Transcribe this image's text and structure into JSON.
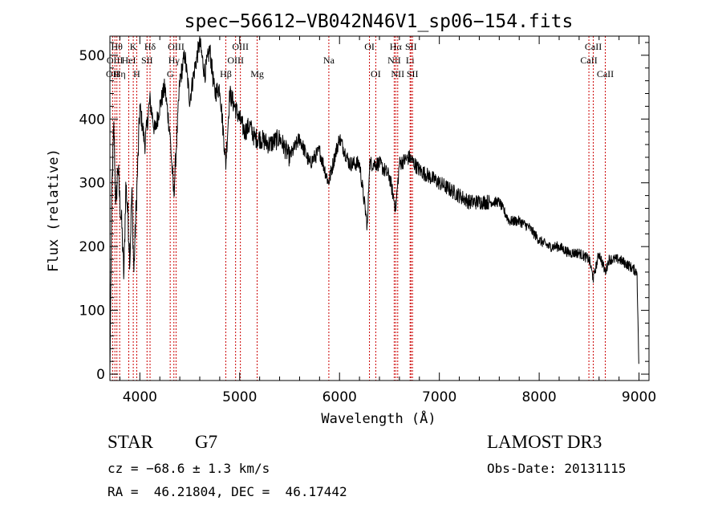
{
  "chart_data": {
    "type": "line",
    "title": "spec−56612−VB042N46V1_sp06−154.fits",
    "xlabel": "Wavelength (Å)",
    "ylabel": "Flux (relative)",
    "xlim": [
      3700,
      9100
    ],
    "ylim": [
      -10,
      530
    ],
    "xticks": [
      4000,
      5000,
      6000,
      7000,
      8000,
      9000
    ],
    "yticks": [
      0,
      100,
      200,
      300,
      400,
      500
    ],
    "series": [
      {
        "name": "flux",
        "x": [
          3700,
          3720,
          3740,
          3760,
          3780,
          3800,
          3820,
          3840,
          3860,
          3880,
          3900,
          3920,
          3940,
          3960,
          3980,
          4000,
          4050,
          4100,
          4150,
          4200,
          4250,
          4300,
          4340,
          4400,
          4450,
          4500,
          4550,
          4600,
          4650,
          4700,
          4750,
          4800,
          4861,
          4900,
          4950,
          5000,
          5050,
          5100,
          5150,
          5200,
          5300,
          5400,
          5500,
          5600,
          5700,
          5800,
          5890,
          5950,
          6000,
          6100,
          6200,
          6280,
          6300,
          6400,
          6500,
          6563,
          6600,
          6700,
          6800,
          6900,
          7000,
          7100,
          7200,
          7300,
          7400,
          7500,
          7600,
          7700,
          7800,
          7900,
          8000,
          8100,
          8200,
          8300,
          8400,
          8500,
          8542,
          8600,
          8662,
          8700,
          8800,
          8900,
          8980,
          9000
        ],
        "values": [
          0,
          290,
          390,
          260,
          330,
          270,
          230,
          150,
          300,
          250,
          180,
          290,
          160,
          250,
          330,
          420,
          360,
          430,
          380,
          420,
          450,
          380,
          280,
          460,
          500,
          430,
          480,
          520,
          470,
          510,
          440,
          450,
          330,
          440,
          420,
          400,
          380,
          390,
          370,
          370,
          360,
          370,
          340,
          370,
          330,
          350,
          300,
          340,
          370,
          330,
          330,
          230,
          330,
          330,
          310,
          260,
          330,
          340,
          320,
          310,
          300,
          290,
          280,
          270,
          270,
          270,
          270,
          240,
          240,
          230,
          210,
          200,
          200,
          190,
          190,
          180,
          150,
          190,
          160,
          180,
          180,
          170,
          160,
          0
        ]
      }
    ],
    "lines": [
      {
        "w": 3727,
        "label": "OII",
        "row": 2
      },
      {
        "w": 3750,
        "label": "OIII",
        "row": 1
      },
      {
        "w": 3770,
        "label": "Hθ",
        "row": 0
      },
      {
        "w": 3798,
        "label": "Hη",
        "row": 2
      },
      {
        "w": 3889,
        "label": "HeI",
        "row": 1
      },
      {
        "w": 3934,
        "label": "K",
        "row": 0
      },
      {
        "w": 3969,
        "label": "H",
        "row": 2
      },
      {
        "w": 4072,
        "label": "SII",
        "row": 1
      },
      {
        "w": 4102,
        "label": "Hδ",
        "row": 0
      },
      {
        "w": 4304,
        "label": "G",
        "row": 2
      },
      {
        "w": 4341,
        "label": "Hγ",
        "row": 1
      },
      {
        "w": 4363,
        "label": "OIII",
        "row": 0
      },
      {
        "w": 4861,
        "label": "Hβ",
        "row": 2
      },
      {
        "w": 4959,
        "label": "OIII",
        "row": 1
      },
      {
        "w": 5007,
        "label": "OIII",
        "row": 0
      },
      {
        "w": 5175,
        "label": "Mg",
        "row": 2
      },
      {
        "w": 5893,
        "label": "Na",
        "row": 1
      },
      {
        "w": 6300,
        "label": "OI",
        "row": 0
      },
      {
        "w": 6363,
        "label": "OI",
        "row": 2
      },
      {
        "w": 6548,
        "label": "NII",
        "row": 1
      },
      {
        "w": 6563,
        "label": "Hα",
        "row": 0
      },
      {
        "w": 6583,
        "label": "NII",
        "row": 2
      },
      {
        "w": 6707,
        "label": "Li",
        "row": 1
      },
      {
        "w": 6716,
        "label": "SII",
        "row": 0
      },
      {
        "w": 6731,
        "label": "SII",
        "row": 2
      },
      {
        "w": 8498,
        "label": "CaII",
        "row": 1
      },
      {
        "w": 8542,
        "label": "CaII",
        "row": 0
      },
      {
        "w": 8662,
        "label": "CaII",
        "row": 2
      }
    ]
  },
  "footer": {
    "object_class": "STAR",
    "subclass": "G7",
    "survey": "LAMOST DR3",
    "cz": "cz = −68.6 ± 1.3 km/s",
    "obs_date": "Obs-Date: 20131115",
    "coords": "RA =  46.21804, DEC =  46.17442"
  },
  "colors": {
    "spectrum": "#000000",
    "line_marker": "#cc0000",
    "axis": "#000000"
  }
}
